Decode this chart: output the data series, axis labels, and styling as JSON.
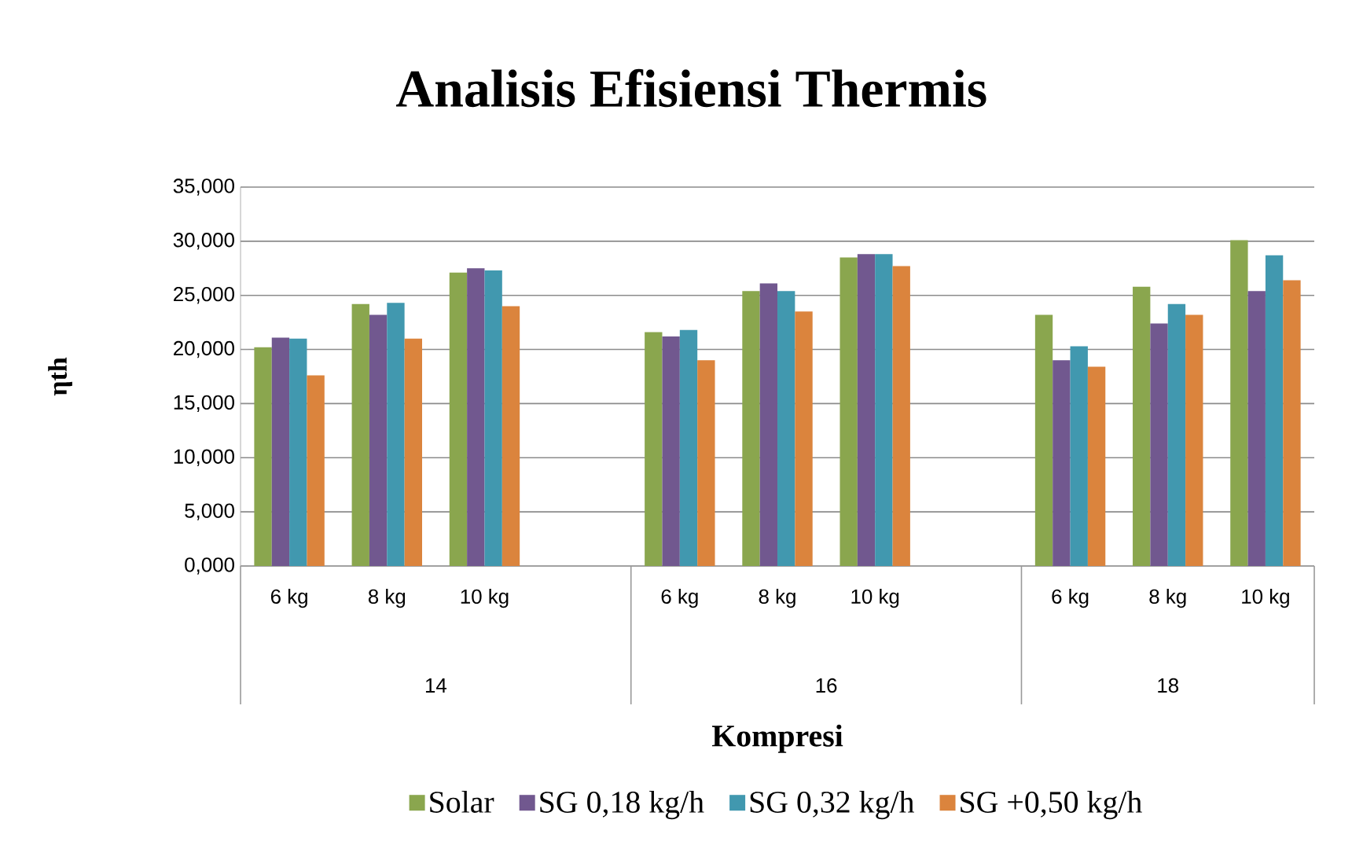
{
  "chart_data": {
    "type": "bar",
    "title": "Analisis Efisiensi Thermis",
    "xlabel": "Kompresi",
    "ylabel": "ηth",
    "categories": [
      "6 kg",
      "8 kg",
      "10 kg",
      null,
      "6 kg",
      "8 kg",
      "10 kg",
      null,
      "6 kg",
      "8 kg",
      "10 kg"
    ],
    "annotations": [
      "14",
      "16",
      "18"
    ],
    "series": [
      {
        "name": "Solar",
        "color": "#8aa64e",
        "values": [
          20.2,
          24.2,
          27.1,
          null,
          21.6,
          25.4,
          28.5,
          null,
          23.2,
          25.8,
          30.1
        ]
      },
      {
        "name": "SG 0,18 kg/h",
        "color": "#71588f",
        "values": [
          21.1,
          23.2,
          27.5,
          null,
          21.2,
          26.1,
          28.8,
          null,
          19.0,
          22.4,
          25.4
        ]
      },
      {
        "name": "SG 0,32 kg/h",
        "color": "#4198af",
        "values": [
          21.0,
          24.3,
          27.3,
          null,
          21.8,
          25.4,
          28.8,
          null,
          20.3,
          24.2,
          28.7
        ]
      },
      {
        "name": "SG +0,50 kg/h",
        "color": "#db843d",
        "values": [
          17.6,
          21.0,
          24.0,
          null,
          19.0,
          23.5,
          27.7,
          null,
          18.4,
          23.2,
          26.4
        ]
      }
    ],
    "ylim": [
      0,
      35
    ],
    "yticks": [
      {
        "value": 0,
        "label": "0,000"
      },
      {
        "value": 5,
        "label": "5,000"
      },
      {
        "value": 10,
        "label": "10,000"
      },
      {
        "value": 15,
        "label": "15,000"
      },
      {
        "value": 20,
        "label": "20,000"
      },
      {
        "value": 25,
        "label": "25,000"
      },
      {
        "value": 30,
        "label": "30,000"
      },
      {
        "value": 35,
        "label": "35,000"
      }
    ],
    "grid": "y",
    "legend": "bottom"
  }
}
